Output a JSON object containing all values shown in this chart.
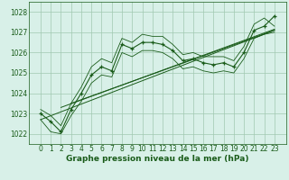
{
  "title": "Graphe pression niveau de la mer (hPa)",
  "x_values": [
    0,
    1,
    2,
    3,
    4,
    5,
    6,
    7,
    8,
    9,
    10,
    11,
    12,
    13,
    14,
    15,
    16,
    17,
    18,
    19,
    20,
    21,
    22,
    23
  ],
  "pressure": [
    1023.0,
    1022.6,
    1022.1,
    1023.2,
    1024.0,
    1024.9,
    1025.3,
    1025.1,
    1026.4,
    1026.2,
    1026.5,
    1026.5,
    1026.4,
    1026.1,
    1025.6,
    1025.7,
    1025.5,
    1025.4,
    1025.5,
    1025.3,
    1026.0,
    1027.1,
    1027.3,
    1027.8
  ],
  "min_values": [
    1022.7,
    1022.1,
    1022.0,
    1022.9,
    1023.6,
    1024.5,
    1024.9,
    1024.8,
    1026.0,
    1025.8,
    1026.1,
    1026.1,
    1026.0,
    1025.7,
    1025.2,
    1025.3,
    1025.1,
    1025.0,
    1025.1,
    1025.0,
    1025.7,
    1026.7,
    1026.9,
    1027.0
  ],
  "max_values": [
    1023.2,
    1022.9,
    1022.4,
    1023.5,
    1024.3,
    1025.3,
    1025.7,
    1025.5,
    1026.7,
    1026.5,
    1026.9,
    1026.8,
    1026.8,
    1026.4,
    1025.9,
    1026.0,
    1025.8,
    1025.8,
    1025.8,
    1025.6,
    1026.3,
    1027.4,
    1027.7,
    1027.3
  ],
  "trend1_x": [
    0,
    23
  ],
  "trend1_y": [
    1022.7,
    1027.1
  ],
  "trend2_x": [
    2,
    23
  ],
  "trend2_y": [
    1023.3,
    1027.15
  ],
  "trend3_x": [
    3,
    23
  ],
  "trend3_y": [
    1023.5,
    1027.1
  ],
  "ylim": [
    1021.5,
    1028.5
  ],
  "yticks": [
    1022,
    1023,
    1024,
    1025,
    1026,
    1027,
    1028
  ],
  "xticks": [
    0,
    1,
    2,
    3,
    4,
    5,
    6,
    7,
    8,
    9,
    10,
    11,
    12,
    13,
    14,
    15,
    16,
    17,
    18,
    19,
    20,
    21,
    22,
    23
  ],
  "line_color": "#1a5c1a",
  "bg_color": "#d8f0e8",
  "grid_color": "#a0c8b0",
  "title_color": "#1a5c1a",
  "title_fontsize": 6.5,
  "tick_fontsize": 5.5
}
